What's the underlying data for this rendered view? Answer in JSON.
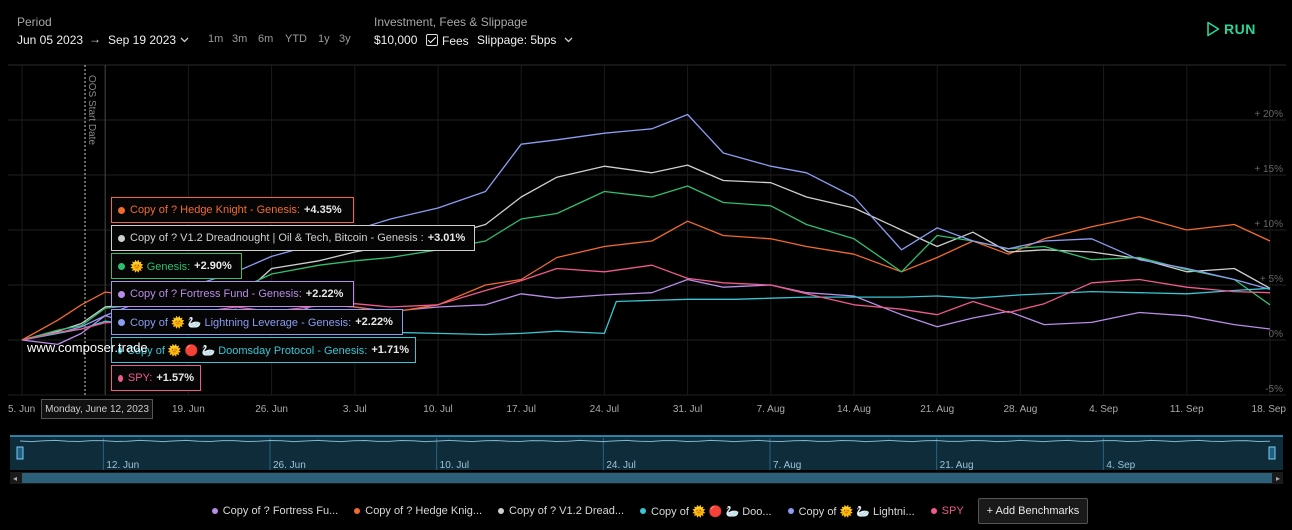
{
  "header": {
    "period_label": "Period",
    "start_date": "Jun 05 2023",
    "end_date": "Sep 19 2023",
    "ranges": [
      "1m",
      "3m",
      "6m",
      "YTD",
      "1y",
      "3y"
    ],
    "inv_label": "Investment, Fees & Slippage",
    "amount": "$10,000",
    "fees_label": "Fees",
    "slippage": "Slippage: 5bps",
    "run_label": "RUN"
  },
  "oos_label": "OOS Start Date",
  "watermark": "www.composer.trade",
  "hover_date": "Monday, June 12, 2023",
  "tooltips": [
    {
      "name": "Copy of ? Hedge Knight - Genesis:",
      "value": "+4.35%",
      "color": "#f26a2d"
    },
    {
      "name": "Copy of ? V1.2 Dreadnought | Oil & Tech, Bitcoin - Genesis :",
      "value": "+3.01%",
      "color": "#cfcfcf"
    },
    {
      "name": "🌞 Genesis:",
      "value": "+2.90%",
      "color": "#2fbf71"
    },
    {
      "name": "Copy of ? Fortress Fund - Genesis:",
      "value": "+2.22%",
      "color": "#b88de6"
    },
    {
      "name": "Copy of 🌞 🦢 Lightning Leverage - Genesis:",
      "value": "+2.22%",
      "color": "#8c9cf0"
    },
    {
      "name": "Copy of 🌞 🔴 🦢 Doomsday Protocol - Genesis:",
      "value": "+1.71%",
      "color": "#38c6d4"
    },
    {
      "name": "SPY:",
      "value": "+1.57%",
      "color": "#f05a8e"
    }
  ],
  "legend": {
    "items": [
      {
        "label": "Copy of ? Fortress Fu...",
        "color": "#b88de6"
      },
      {
        "label": "Copy of ? Hedge Knig...",
        "color": "#f26a2d"
      },
      {
        "label": "Copy of ? V1.2 Dread...",
        "color": "#cfcfcf"
      },
      {
        "label": "Copy of 🌞 🔴 🦢 Doo...",
        "color": "#38c6d4"
      },
      {
        "label": "Copy of 🌞 🦢 Lightni...",
        "color": "#8c9cf0"
      },
      {
        "label": "SPY",
        "color": "#f05a8e"
      }
    ],
    "add_label": "Add Benchmarks"
  },
  "chart_data": {
    "type": "line",
    "title": "",
    "xlabel": "",
    "ylabel": "",
    "ylim": [
      -5,
      25
    ],
    "yticks": [
      "-5%",
      "0%",
      "5%",
      "10%",
      "15%",
      "20%"
    ],
    "ytick_values": [
      -5,
      0,
      5,
      10,
      15,
      20
    ],
    "xticks": [
      "5. Jun",
      "12. Jun",
      "19. Jun",
      "26. Jun",
      "3. Jul",
      "10. Jul",
      "17. Jul",
      "24. Jul",
      "31. Jul",
      "7. Aug",
      "14. Aug",
      "21. Aug",
      "28. Aug",
      "4. Sep",
      "11. Sep",
      "18. Sep"
    ],
    "xtick_days": [
      0,
      7,
      14,
      21,
      28,
      35,
      42,
      49,
      56,
      63,
      70,
      77,
      84,
      91,
      98,
      105
    ],
    "navigator_labels": [
      "12. Jun",
      "26. Jun",
      "10. Jul",
      "24. Jul",
      "7. Aug",
      "21. Aug",
      "4. Sep"
    ],
    "navigator_days": [
      7,
      21,
      35,
      49,
      63,
      77,
      91
    ],
    "oos_day": 5.3,
    "series": [
      {
        "name": "Copy of ? Fortress Fund",
        "color": "#b88de6",
        "points": [
          [
            0,
            0
          ],
          [
            3,
            -0.4
          ],
          [
            5,
            0.6
          ],
          [
            7,
            2.22
          ],
          [
            10,
            1.2
          ],
          [
            14,
            2.0
          ],
          [
            18,
            2.8
          ],
          [
            21,
            1.4
          ],
          [
            25,
            3.4
          ],
          [
            28,
            3.0
          ],
          [
            31,
            2.6
          ],
          [
            35,
            3.0
          ],
          [
            39,
            3.2
          ],
          [
            42,
            4.2
          ],
          [
            45,
            3.8
          ],
          [
            49,
            4.1
          ],
          [
            53,
            4.3
          ],
          [
            56,
            5.5
          ],
          [
            59,
            4.8
          ],
          [
            63,
            5.0
          ],
          [
            66,
            4.3
          ],
          [
            70,
            4.0
          ],
          [
            74,
            2.3
          ],
          [
            77,
            1.2
          ],
          [
            80,
            2.0
          ],
          [
            83,
            2.6
          ],
          [
            86,
            1.4
          ],
          [
            90,
            1.6
          ],
          [
            94,
            2.5
          ],
          [
            98,
            2.2
          ],
          [
            102,
            1.4
          ],
          [
            105,
            1.0
          ]
        ]
      },
      {
        "name": "Copy of ? Hedge Knight",
        "color": "#f26a2d",
        "points": [
          [
            0,
            0
          ],
          [
            3,
            1.8
          ],
          [
            5,
            3.2
          ],
          [
            7,
            4.35
          ],
          [
            10,
            4.0
          ],
          [
            14,
            3.8
          ],
          [
            18,
            3.2
          ],
          [
            21,
            3.6
          ],
          [
            25,
            3.2
          ],
          [
            28,
            3.0
          ],
          [
            31,
            2.5
          ],
          [
            35,
            3.2
          ],
          [
            39,
            5.0
          ],
          [
            42,
            5.5
          ],
          [
            45,
            7.5
          ],
          [
            49,
            8.5
          ],
          [
            53,
            9.0
          ],
          [
            56,
            10.8
          ],
          [
            59,
            9.5
          ],
          [
            63,
            9.2
          ],
          [
            66,
            8.5
          ],
          [
            70,
            7.8
          ],
          [
            74,
            6.2
          ],
          [
            77,
            7.5
          ],
          [
            80,
            9.0
          ],
          [
            83,
            7.8
          ],
          [
            86,
            9.2
          ],
          [
            90,
            10.3
          ],
          [
            94,
            11.2
          ],
          [
            98,
            10.0
          ],
          [
            102,
            10.5
          ],
          [
            105,
            9.0
          ]
        ]
      },
      {
        "name": "Copy of ? V1.2 Dreadnought",
        "color": "#cfcfcf",
        "points": [
          [
            0,
            0
          ],
          [
            3,
            0.8
          ],
          [
            5,
            1.5
          ],
          [
            7,
            3.01
          ],
          [
            10,
            3.3
          ],
          [
            14,
            4.3
          ],
          [
            18,
            3.6
          ],
          [
            21,
            6.5
          ],
          [
            25,
            7.2
          ],
          [
            28,
            8.0
          ],
          [
            31,
            8.6
          ],
          [
            35,
            9.3
          ],
          [
            39,
            10.5
          ],
          [
            42,
            13.0
          ],
          [
            45,
            14.8
          ],
          [
            49,
            15.8
          ],
          [
            53,
            15.2
          ],
          [
            56,
            15.9
          ],
          [
            59,
            14.5
          ],
          [
            63,
            14.3
          ],
          [
            66,
            13.0
          ],
          [
            70,
            12.0
          ],
          [
            74,
            10.0
          ],
          [
            77,
            8.5
          ],
          [
            80,
            9.8
          ],
          [
            83,
            8.0
          ],
          [
            86,
            8.2
          ],
          [
            90,
            8.0
          ],
          [
            94,
            7.4
          ],
          [
            98,
            6.2
          ],
          [
            102,
            6.5
          ],
          [
            105,
            4.7
          ]
        ]
      },
      {
        "name": "🌞 Genesis",
        "color": "#2fbf71",
        "points": [
          [
            0,
            0
          ],
          [
            3,
            0.9
          ],
          [
            5,
            1.3
          ],
          [
            7,
            2.9
          ],
          [
            10,
            3.2
          ],
          [
            14,
            3.8
          ],
          [
            18,
            4.5
          ],
          [
            21,
            6.0
          ],
          [
            25,
            6.8
          ],
          [
            28,
            7.2
          ],
          [
            31,
            7.5
          ],
          [
            35,
            8.2
          ],
          [
            39,
            9.0
          ],
          [
            42,
            11.0
          ],
          [
            45,
            11.5
          ],
          [
            49,
            13.5
          ],
          [
            53,
            13.0
          ],
          [
            56,
            14.0
          ],
          [
            59,
            12.5
          ],
          [
            63,
            12.2
          ],
          [
            66,
            10.5
          ],
          [
            70,
            9.2
          ],
          [
            74,
            6.2
          ],
          [
            77,
            9.5
          ],
          [
            80,
            9.0
          ],
          [
            83,
            8.3
          ],
          [
            86,
            8.5
          ],
          [
            90,
            7.3
          ],
          [
            94,
            7.5
          ],
          [
            98,
            6.4
          ],
          [
            102,
            5.5
          ],
          [
            105,
            3.2
          ]
        ]
      },
      {
        "name": "Copy of 🌞 🦢 Lightning Leverage",
        "color": "#8c9cf0",
        "points": [
          [
            0,
            0
          ],
          [
            3,
            0.6
          ],
          [
            5,
            1.2
          ],
          [
            7,
            2.22
          ],
          [
            10,
            3.5
          ],
          [
            14,
            4.8
          ],
          [
            18,
            6.2
          ],
          [
            21,
            7.6
          ],
          [
            25,
            8.8
          ],
          [
            28,
            10.0
          ],
          [
            31,
            11.0
          ],
          [
            35,
            12.0
          ],
          [
            39,
            13.5
          ],
          [
            42,
            17.8
          ],
          [
            45,
            18.2
          ],
          [
            49,
            18.8
          ],
          [
            53,
            19.2
          ],
          [
            56,
            20.5
          ],
          [
            59,
            17.0
          ],
          [
            63,
            15.8
          ],
          [
            66,
            15.2
          ],
          [
            70,
            13.0
          ],
          [
            74,
            8.2
          ],
          [
            77,
            10.2
          ],
          [
            80,
            9.0
          ],
          [
            83,
            8.3
          ],
          [
            86,
            9.0
          ],
          [
            90,
            9.2
          ],
          [
            94,
            7.3
          ],
          [
            98,
            6.5
          ],
          [
            102,
            5.5
          ],
          [
            105,
            4.6
          ]
        ]
      },
      {
        "name": "Copy of 🌞 🔴 🦢 Doomsday Protocol",
        "color": "#38c6d4",
        "points": [
          [
            0,
            0
          ],
          [
            3,
            0.6
          ],
          [
            5,
            1.0
          ],
          [
            7,
            1.71
          ],
          [
            10,
            1.3
          ],
          [
            14,
            1.5
          ],
          [
            18,
            1.0
          ],
          [
            21,
            1.2
          ],
          [
            25,
            0.9
          ],
          [
            28,
            0.8
          ],
          [
            31,
            0.7
          ],
          [
            35,
            0.6
          ],
          [
            39,
            0.5
          ],
          [
            42,
            0.6
          ],
          [
            45,
            0.8
          ],
          [
            49,
            0.6
          ],
          [
            50,
            3.5
          ],
          [
            53,
            3.6
          ],
          [
            56,
            3.7
          ],
          [
            60,
            3.7
          ],
          [
            63,
            3.8
          ],
          [
            66,
            3.9
          ],
          [
            70,
            3.9
          ],
          [
            74,
            3.9
          ],
          [
            77,
            4.0
          ],
          [
            80,
            3.8
          ],
          [
            84,
            4.1
          ],
          [
            90,
            4.4
          ],
          [
            94,
            4.3
          ],
          [
            98,
            4.2
          ],
          [
            102,
            4.5
          ],
          [
            105,
            4.7
          ]
        ]
      },
      {
        "name": "SPY",
        "color": "#f05a8e",
        "points": [
          [
            0,
            0
          ],
          [
            3,
            0.7
          ],
          [
            5,
            1.0
          ],
          [
            7,
            1.57
          ],
          [
            10,
            1.7
          ],
          [
            14,
            2.4
          ],
          [
            18,
            3.0
          ],
          [
            21,
            2.6
          ],
          [
            25,
            3.1
          ],
          [
            28,
            3.3
          ],
          [
            31,
            3.0
          ],
          [
            35,
            3.2
          ],
          [
            39,
            4.5
          ],
          [
            42,
            5.4
          ],
          [
            45,
            6.5
          ],
          [
            49,
            6.2
          ],
          [
            53,
            6.8
          ],
          [
            56,
            5.6
          ],
          [
            59,
            5.2
          ],
          [
            63,
            5.0
          ],
          [
            66,
            4.2
          ],
          [
            70,
            3.2
          ],
          [
            74,
            2.8
          ],
          [
            77,
            2.3
          ],
          [
            80,
            3.5
          ],
          [
            83,
            2.5
          ],
          [
            86,
            3.3
          ],
          [
            90,
            5.2
          ],
          [
            94,
            5.5
          ],
          [
            98,
            4.8
          ],
          [
            102,
            4.4
          ],
          [
            105,
            4.3
          ]
        ]
      }
    ]
  }
}
